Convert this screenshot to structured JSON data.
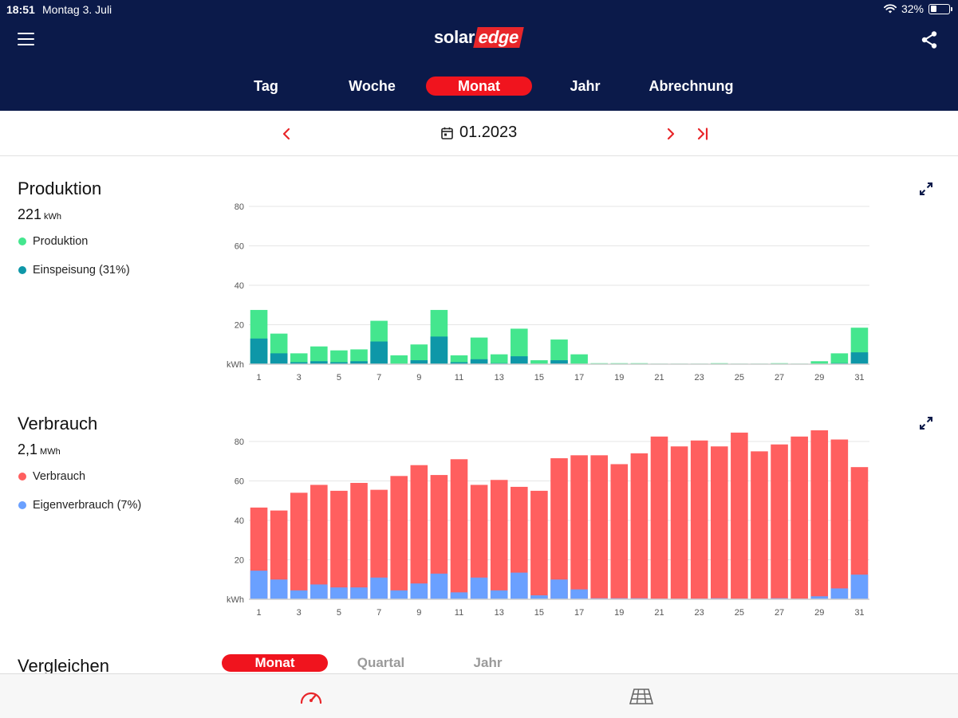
{
  "status": {
    "time": "18:51",
    "date": "Montag 3. Juli",
    "battery": "32%",
    "battery_level": 0.32
  },
  "header": {
    "logo_solar": "solar",
    "logo_edge": "edge",
    "tabs": [
      {
        "label": "Tag"
      },
      {
        "label": "Woche"
      },
      {
        "label": "Monat"
      },
      {
        "label": "Jahr"
      },
      {
        "label": "Abrechnung"
      }
    ],
    "active_tab": "Monat"
  },
  "datenav": {
    "date": "01.2023"
  },
  "production": {
    "title": "Produktion",
    "total_value": "221",
    "total_unit": "kWh",
    "legend": [
      {
        "label": "Produktion",
        "color": "#44e68e"
      },
      {
        "label": "Einspeisung (31%)",
        "color": "#0e97a8"
      }
    ]
  },
  "consumption": {
    "title": "Verbrauch",
    "total_value": "2,1",
    "total_unit": "MWh",
    "legend": [
      {
        "label": "Verbrauch",
        "color": "#ff5f5f"
      },
      {
        "label": "Eigenverbrauch (7%)",
        "color": "#6aa0ff"
      }
    ]
  },
  "compare": {
    "title": "Vergleichen",
    "tabs": [
      {
        "label": "Monat"
      },
      {
        "label": "Quartal"
      },
      {
        "label": "Jahr"
      }
    ],
    "active_tab": "Monat"
  },
  "chart_data": [
    {
      "type": "bar",
      "stacked": true,
      "ylabel": "kWh",
      "ylim": [
        0,
        80
      ],
      "yticks": [
        20,
        40,
        60,
        80
      ],
      "categories": [
        1,
        2,
        3,
        4,
        5,
        6,
        7,
        8,
        9,
        10,
        11,
        12,
        13,
        14,
        15,
        16,
        17,
        18,
        19,
        20,
        21,
        22,
        23,
        24,
        25,
        26,
        27,
        28,
        29,
        30,
        31
      ],
      "xtick_labels": [
        "1",
        "3",
        "5",
        "7",
        "9",
        "11",
        "13",
        "15",
        "17",
        "19",
        "21",
        "23",
        "25",
        "27",
        "29",
        "31"
      ],
      "grid": true,
      "series": [
        {
          "name": "Einspeisung (31%)",
          "color": "#0e97a8",
          "values": [
            13,
            5.5,
            1,
            1.5,
            1,
            1.5,
            11.5,
            0,
            2,
            14,
            1,
            2.5,
            0.5,
            4,
            0,
            2,
            0,
            0,
            0,
            0,
            0,
            0,
            0,
            0,
            0,
            0,
            0,
            0,
            0,
            0.5,
            6
          ]
        },
        {
          "name": "Produktion",
          "color": "#44e68e",
          "total": true,
          "values": [
            27.5,
            15.5,
            5.5,
            9,
            7,
            7.5,
            22,
            4.5,
            10,
            27.5,
            4.5,
            13.5,
            5,
            18,
            2,
            12.5,
            5,
            0.5,
            0.5,
            0.5,
            0.3,
            0.3,
            0.3,
            0.5,
            0.3,
            0.3,
            0.5,
            0.3,
            1.5,
            5.5,
            18.5
          ]
        }
      ]
    },
    {
      "type": "bar",
      "stacked": true,
      "ylabel": "kWh",
      "ylim": [
        0,
        80
      ],
      "yticks": [
        20,
        40,
        60,
        80
      ],
      "categories": [
        1,
        2,
        3,
        4,
        5,
        6,
        7,
        8,
        9,
        10,
        11,
        12,
        13,
        14,
        15,
        16,
        17,
        18,
        19,
        20,
        21,
        22,
        23,
        24,
        25,
        26,
        27,
        28,
        29,
        30,
        31
      ],
      "xtick_labels": [
        "1",
        "3",
        "5",
        "7",
        "9",
        "11",
        "13",
        "15",
        "17",
        "19",
        "21",
        "23",
        "25",
        "27",
        "29",
        "31"
      ],
      "grid": true,
      "series": [
        {
          "name": "Eigenverbrauch (7%)",
          "color": "#6aa0ff",
          "values": [
            14.5,
            10,
            4.5,
            7.5,
            6,
            6,
            11,
            4.5,
            8,
            13,
            3.5,
            11,
            4.5,
            13.5,
            2,
            10,
            5,
            0.5,
            0.5,
            0.5,
            0.3,
            0.3,
            0.3,
            0.5,
            0.3,
            0.3,
            0.5,
            0.3,
            1.5,
            5.5,
            12.5
          ]
        },
        {
          "name": "Verbrauch",
          "color": "#ff5f5f",
          "total": true,
          "values": [
            46.5,
            45,
            54,
            58,
            55,
            59,
            55.5,
            62.5,
            68,
            63,
            71,
            58,
            60.5,
            57,
            55,
            71.5,
            73,
            73,
            68.5,
            74,
            82.5,
            77.5,
            80.5,
            77.5,
            84.5,
            75,
            78.5,
            82.5,
            86,
            81,
            67
          ]
        }
      ]
    }
  ]
}
